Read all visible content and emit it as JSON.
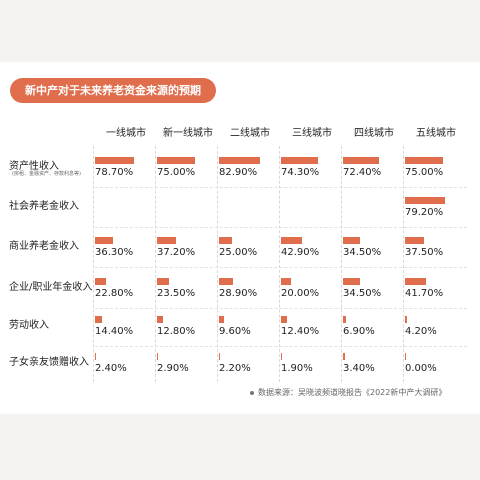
{
  "chart_data": {
    "type": "table",
    "title": "新中产对于未来养老资金来源的预期",
    "categories": [
      "一线城市",
      "新一线城市",
      "二线城市",
      "三线城市",
      "四线城市",
      "五线城市"
    ],
    "rows": [
      {
        "label": "资产性收入",
        "sublabel": "(房租、金融资产、存款利息等)",
        "values": [
          78.7,
          75.0,
          82.9,
          74.3,
          72.4,
          75.0
        ],
        "display": [
          "78.70%",
          "75.00%",
          "82.90%",
          "74.30%",
          "72.40%",
          "75.00%"
        ]
      },
      {
        "label": "社会养老金收入",
        "sublabel": "",
        "values": [
          null,
          null,
          null,
          null,
          null,
          79.2
        ],
        "display": [
          "",
          "",
          "",
          "",
          "",
          "79.20%"
        ]
      },
      {
        "label": "商业养老金收入",
        "sublabel": "",
        "values": [
          36.3,
          37.2,
          25.0,
          42.9,
          34.5,
          37.5
        ],
        "display": [
          "36.30%",
          "37.20%",
          "25.00%",
          "42.90%",
          "34.50%",
          "37.50%"
        ]
      },
      {
        "label": "企业/职业年金收入",
        "sublabel": "",
        "values": [
          22.8,
          23.5,
          28.9,
          20.0,
          34.5,
          41.7
        ],
        "display": [
          "22.80%",
          "23.50%",
          "28.90%",
          "20.00%",
          "34.50%",
          "41.70%"
        ]
      },
      {
        "label": "劳动收入",
        "sublabel": "",
        "values": [
          14.4,
          12.8,
          9.6,
          12.4,
          6.9,
          4.2
        ],
        "display": [
          "14.40%",
          "12.80%",
          "9.60%",
          "12.40%",
          "6.90%",
          "4.20%"
        ]
      },
      {
        "label": "子女亲友馈赠收入",
        "sublabel": "",
        "values": [
          2.4,
          2.9,
          2.2,
          1.9,
          3.4,
          0.0
        ],
        "display": [
          "2.40%",
          "2.90%",
          "2.20%",
          "1.90%",
          "3.40%",
          "0.00%"
        ]
      }
    ],
    "value_max": 100,
    "bar_color": "#e06e4c",
    "source": "数据来源：吴晓波频道晓报告《2022新中产大调研》"
  }
}
